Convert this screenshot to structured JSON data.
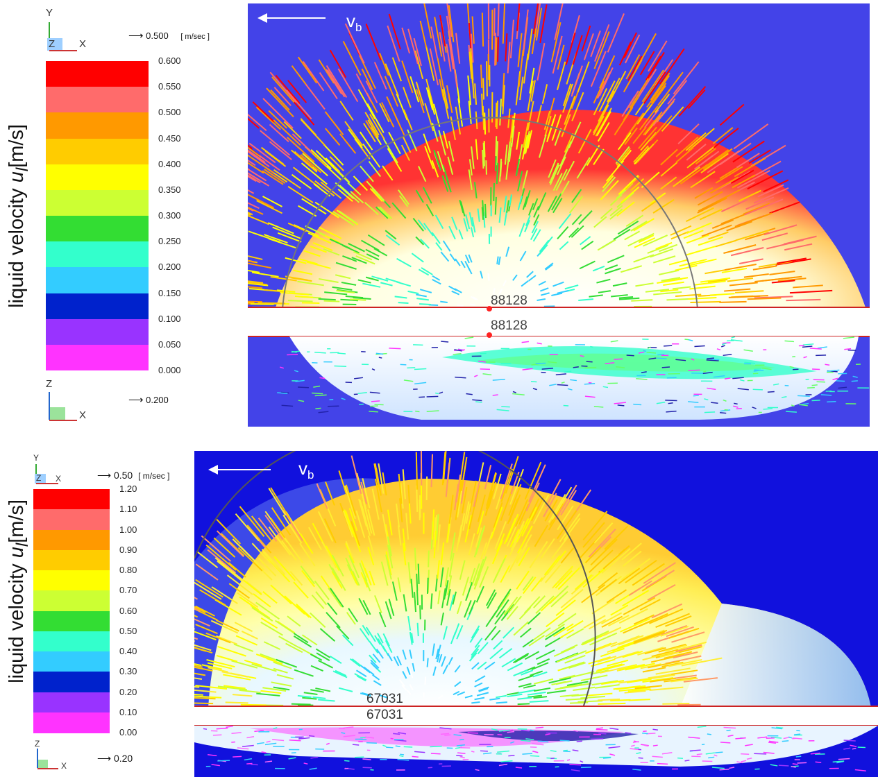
{
  "top": {
    "ylabel": "liquid velocity",
    "ylabel_symbol": "u",
    "ylabel_sub": "l",
    "ylabel_unit": "[m/s]",
    "axis_triad_top": {
      "y": "Y",
      "z": "Z",
      "x": "X"
    },
    "axis_triad_bottom": {
      "z": "Z",
      "x": "X"
    },
    "vector_ref_top": "0.500",
    "vector_unit": "[ m/sec ]",
    "vector_ref_bottom": "0.200",
    "colorbar": {
      "ticks": [
        "0.600",
        "0.550",
        "0.500",
        "0.450",
        "0.400",
        "0.350",
        "0.300",
        "0.250",
        "0.200",
        "0.150",
        "0.100",
        "0.050",
        "0.000"
      ],
      "colors": [
        "#ff0000",
        "#ff6b6b",
        "#ff9900",
        "#ffcc00",
        "#ffff00",
        "#ccff33",
        "#33dd33",
        "#33ffcc",
        "#33ccff",
        "#0022cc",
        "#9933ff",
        "#ff33ff"
      ]
    },
    "vb": "v",
    "vb_sub": "b",
    "node_label_1": "88128",
    "node_label_2": "88128"
  },
  "bottom": {
    "ylabel": "liquid velocity",
    "ylabel_symbol": "u",
    "ylabel_sub": "l",
    "ylabel_unit": "[m/s]",
    "axis_triad_top": {
      "y": "Y",
      "z": "Z",
      "x": "X"
    },
    "axis_triad_bottom": {
      "z": "Z",
      "x": "X"
    },
    "vector_ref_top": "0.50",
    "vector_unit": "[ m/sec ]",
    "vector_ref_bottom": "0.20",
    "colorbar": {
      "ticks": [
        "1.20",
        "1.10",
        "1.00",
        "0.90",
        "0.80",
        "0.70",
        "0.60",
        "0.50",
        "0.40",
        "0.30",
        "0.20",
        "0.10",
        "0.00"
      ],
      "colors": [
        "#ff0000",
        "#ff6b6b",
        "#ff9900",
        "#ffcc00",
        "#ffff00",
        "#ccff33",
        "#33dd33",
        "#33ffcc",
        "#33ccff",
        "#0022cc",
        "#9933ff",
        "#ff33ff"
      ]
    },
    "vb": "v",
    "vb_sub": "b",
    "node_label_1": "67031",
    "node_label_2": "67031"
  }
}
